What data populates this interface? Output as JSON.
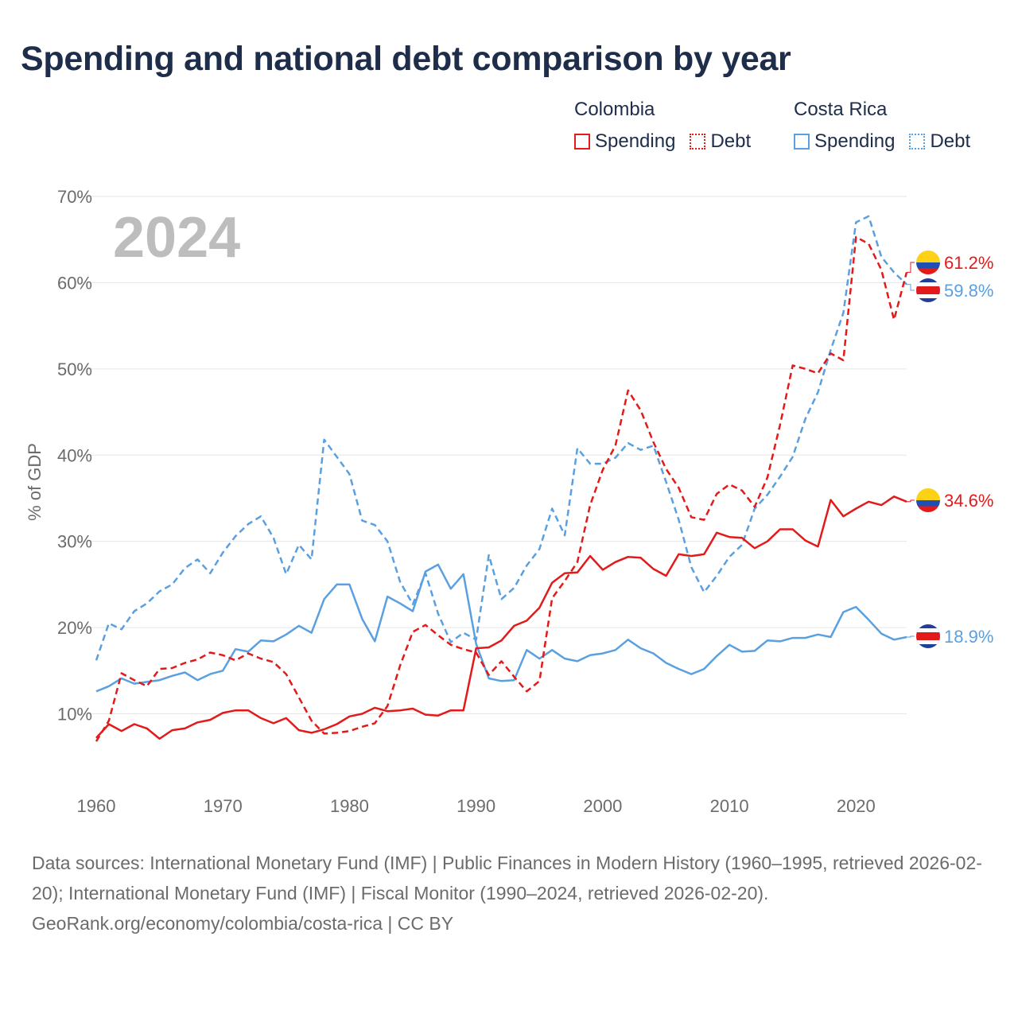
{
  "title": "Spending and national debt comparison by year",
  "legend": {
    "groups": [
      {
        "name": "Colombia",
        "color": "#e21a1a",
        "items": [
          {
            "label": "Spending",
            "style": "solid"
          },
          {
            "label": "Debt",
            "style": "dotted"
          }
        ]
      },
      {
        "name": "Costa Rica",
        "color": "#5aa0e0",
        "items": [
          {
            "label": "Spending",
            "style": "solid"
          },
          {
            "label": "Debt",
            "style": "dotted"
          }
        ]
      }
    ]
  },
  "footer": {
    "sources": "Data sources: International Monetary Fund (IMF) | Public Finances in Modern History (1960–1995, retrieved 2026-02-20); International Monetary Fund (IMF) | Fiscal Monitor (1990–2024, retrieved 2026-02-20).",
    "attribution": "GeoRank.org/economy/colombia/costa-rica | CC BY"
  },
  "chart_data": {
    "type": "line",
    "year_label": "2024",
    "ylabel": "% of GDP",
    "xlabel": "",
    "xlim": [
      1960,
      2024
    ],
    "ylim": [
      0,
      70
    ],
    "yticks": [
      10,
      20,
      30,
      40,
      50,
      60,
      70
    ],
    "ytick_labels": [
      "10%",
      "20%",
      "30%",
      "40%",
      "50%",
      "60%",
      "70%"
    ],
    "xticks": [
      1960,
      1970,
      1980,
      1990,
      2000,
      2010,
      2020
    ],
    "xtick_labels": [
      "1960",
      "1970",
      "1980",
      "1990",
      "2000",
      "2010",
      "2020"
    ],
    "grid": true,
    "x": [
      1960,
      1961,
      1962,
      1963,
      1964,
      1965,
      1966,
      1967,
      1968,
      1969,
      1970,
      1971,
      1972,
      1973,
      1974,
      1975,
      1976,
      1977,
      1978,
      1979,
      1980,
      1981,
      1982,
      1983,
      1984,
      1985,
      1986,
      1987,
      1988,
      1989,
      1990,
      1991,
      1992,
      1993,
      1994,
      1995,
      1996,
      1997,
      1998,
      1999,
      2000,
      2001,
      2002,
      2003,
      2004,
      2005,
      2006,
      2007,
      2008,
      2009,
      2010,
      2011,
      2012,
      2013,
      2014,
      2015,
      2016,
      2017,
      2018,
      2019,
      2020,
      2021,
      2022,
      2023,
      2024
    ],
    "series": [
      {
        "name": "Colombia Spending",
        "country": "Colombia",
        "metric": "Spending",
        "color": "#e21a1a",
        "dashed": false,
        "end_label": "34.6%",
        "values": [
          7.2,
          8.8,
          8.0,
          8.8,
          8.3,
          7.1,
          8.1,
          8.3,
          9.0,
          9.3,
          10.1,
          10.4,
          10.4,
          9.5,
          8.9,
          9.5,
          8.1,
          7.8,
          8.2,
          8.8,
          9.7,
          10.0,
          10.7,
          10.3,
          10.4,
          10.6,
          9.9,
          9.8,
          10.4,
          10.4,
          17.6,
          17.7,
          18.5,
          20.2,
          20.8,
          22.3,
          25.2,
          26.3,
          26.4,
          28.3,
          26.7,
          27.6,
          28.2,
          28.1,
          26.8,
          26.0,
          28.5,
          28.3,
          28.5,
          31.0,
          30.5,
          30.4,
          29.2,
          30.0,
          31.4,
          31.4,
          30.1,
          29.4,
          34.8,
          32.9,
          33.8,
          34.6,
          34.2,
          35.2,
          34.6
        ]
      },
      {
        "name": "Colombia Debt",
        "country": "Colombia",
        "metric": "Debt",
        "color": "#e21a1a",
        "dashed": true,
        "end_label": "61.2%",
        "values": [
          6.8,
          9.2,
          14.7,
          13.9,
          13.2,
          15.2,
          15.3,
          15.9,
          16.3,
          17.1,
          16.8,
          16.2,
          17.0,
          16.4,
          16.0,
          14.6,
          11.9,
          9.2,
          7.7,
          7.8,
          8.0,
          8.5,
          8.9,
          10.9,
          15.6,
          19.5,
          20.3,
          19.1,
          18.0,
          17.5,
          17.1,
          14.5,
          16.1,
          14.3,
          12.6,
          13.8,
          23.4,
          25.4,
          27.6,
          34.2,
          38.3,
          41.1,
          47.5,
          45.2,
          41.5,
          38.4,
          36.2,
          32.8,
          32.5,
          35.5,
          36.6,
          35.9,
          34.0,
          37.4,
          43.5,
          50.4,
          50.0,
          49.5,
          51.8,
          51.0,
          65.3,
          64.5,
          61.5,
          55.7,
          61.2
        ]
      },
      {
        "name": "Costa Rica Spending",
        "country": "Costa Rica",
        "metric": "Spending",
        "color": "#5aa0e0",
        "dashed": false,
        "end_label": "18.9%",
        "values": [
          12.6,
          13.2,
          14.1,
          13.5,
          13.7,
          13.9,
          14.4,
          14.8,
          13.9,
          14.6,
          15.0,
          17.5,
          17.2,
          18.5,
          18.4,
          19.2,
          20.2,
          19.4,
          23.3,
          25.0,
          25.0,
          21.0,
          18.4,
          23.6,
          22.8,
          21.9,
          26.5,
          27.3,
          24.5,
          26.2,
          18.1,
          14.1,
          13.8,
          13.9,
          17.4,
          16.4,
          17.4,
          16.4,
          16.1,
          16.8,
          17.0,
          17.4,
          18.6,
          17.6,
          17.0,
          15.9,
          15.2,
          14.6,
          15.2,
          16.7,
          18.0,
          17.2,
          17.3,
          18.5,
          18.4,
          18.8,
          18.8,
          19.2,
          18.9,
          21.8,
          22.4,
          20.9,
          19.3,
          18.6,
          18.9
        ]
      },
      {
        "name": "Costa Rica Debt",
        "country": "Costa Rica",
        "metric": "Debt",
        "color": "#5aa0e0",
        "dashed": true,
        "end_label": "59.8%",
        "values": [
          16.2,
          20.5,
          19.8,
          21.9,
          22.8,
          24.2,
          25.0,
          26.9,
          27.9,
          26.3,
          28.7,
          30.6,
          32.0,
          32.9,
          30.4,
          26.2,
          29.6,
          27.9,
          41.8,
          39.8,
          37.8,
          32.4,
          31.9,
          30.0,
          25.3,
          22.7,
          26.3,
          21.6,
          18.3,
          19.4,
          18.6,
          28.4,
          23.3,
          24.6,
          27.2,
          29.1,
          33.8,
          30.7,
          40.8,
          39.0,
          39.0,
          39.7,
          41.4,
          40.6,
          41.1,
          36.9,
          32.5,
          27.0,
          24.1,
          26.0,
          28.2,
          29.6,
          33.8,
          35.4,
          37.5,
          39.8,
          44.2,
          47.3,
          52.2,
          56.5,
          67.0,
          67.7,
          63.0,
          61.2,
          59.8
        ]
      }
    ]
  }
}
